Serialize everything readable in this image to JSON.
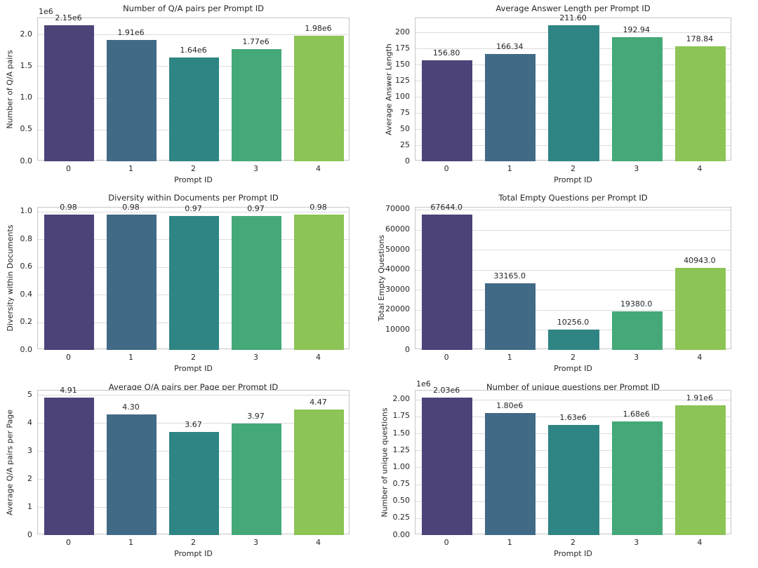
{
  "figure": {
    "background": "#ffffff",
    "text_color": "#262626",
    "grid_color": "#dcdcdc",
    "spine_color": "#c6c6c6",
    "palette": [
      "#4c4379",
      "#406a86",
      "#2f8583",
      "#45a878",
      "#8cc455"
    ]
  },
  "chart_data": [
    {
      "type": "bar",
      "title": "Number of Q/A pairs per Prompt ID",
      "xlabel": "Prompt ID",
      "ylabel": "Number of Q/A pairs",
      "categories": [
        "0",
        "1",
        "2",
        "3",
        "4"
      ],
      "values": [
        2150000,
        1910000,
        1640000,
        1770000,
        1980000
      ],
      "value_labels": [
        "2.15e6",
        "1.91e6",
        "1.64e6",
        "1.77e6",
        "1.98e6"
      ],
      "yticks": [
        {
          "v": 0,
          "label": "0.0"
        },
        {
          "v": 500000,
          "label": "0.5"
        },
        {
          "v": 1000000,
          "label": "1.0"
        },
        {
          "v": 1500000,
          "label": "1.5"
        },
        {
          "v": 2000000,
          "label": "2.0"
        }
      ],
      "ylim": [
        0,
        2257500
      ],
      "offset_text": "1e6",
      "grid": true,
      "legend": null,
      "row": 0,
      "col": 0
    },
    {
      "type": "bar",
      "title": "Average Answer Length per Prompt ID",
      "xlabel": "Prompt ID",
      "ylabel": "Average Answer Length",
      "categories": [
        "0",
        "1",
        "2",
        "3",
        "4"
      ],
      "values": [
        156.8,
        166.34,
        211.6,
        192.94,
        178.84
      ],
      "value_labels": [
        "156.80",
        "166.34",
        "211.60",
        "192.94",
        "178.84"
      ],
      "yticks": [
        {
          "v": 0,
          "label": "0"
        },
        {
          "v": 25,
          "label": "25"
        },
        {
          "v": 50,
          "label": "50"
        },
        {
          "v": 75,
          "label": "75"
        },
        {
          "v": 100,
          "label": "100"
        },
        {
          "v": 125,
          "label": "125"
        },
        {
          "v": 150,
          "label": "150"
        },
        {
          "v": 175,
          "label": "175"
        },
        {
          "v": 200,
          "label": "200"
        }
      ],
      "ylim": [
        0,
        222.18
      ],
      "offset_text": null,
      "grid": true,
      "legend": null,
      "row": 0,
      "col": 1
    },
    {
      "type": "bar",
      "title": "Diversity within Documents per Prompt ID",
      "xlabel": "Prompt ID",
      "ylabel": "Diversity within Documents",
      "categories": [
        "0",
        "1",
        "2",
        "3",
        "4"
      ],
      "values": [
        0.98,
        0.98,
        0.97,
        0.97,
        0.98
      ],
      "value_labels": [
        "0.98",
        "0.98",
        "0.97",
        "0.97",
        "0.98"
      ],
      "yticks": [
        {
          "v": 0,
          "label": "0.0"
        },
        {
          "v": 0.2,
          "label": "0.2"
        },
        {
          "v": 0.4,
          "label": "0.4"
        },
        {
          "v": 0.6,
          "label": "0.6"
        },
        {
          "v": 0.8,
          "label": "0.8"
        },
        {
          "v": 1.0,
          "label": "1.0"
        }
      ],
      "ylim": [
        0,
        1.029
      ],
      "offset_text": null,
      "grid": true,
      "legend": null,
      "row": 1,
      "col": 0
    },
    {
      "type": "bar",
      "title": "Total Empty Questions per Prompt ID",
      "xlabel": "Prompt ID",
      "ylabel": "Total Empty Questions",
      "categories": [
        "0",
        "1",
        "2",
        "3",
        "4"
      ],
      "values": [
        67644,
        33165,
        10256,
        19380,
        40943
      ],
      "value_labels": [
        "67644.0",
        "33165.0",
        "10256.0",
        "19380.0",
        "40943.0"
      ],
      "yticks": [
        {
          "v": 0,
          "label": "0"
        },
        {
          "v": 10000,
          "label": "10000"
        },
        {
          "v": 20000,
          "label": "20000"
        },
        {
          "v": 30000,
          "label": "30000"
        },
        {
          "v": 40000,
          "label": "40000"
        },
        {
          "v": 50000,
          "label": "50000"
        },
        {
          "v": 60000,
          "label": "60000"
        },
        {
          "v": 70000,
          "label": "70000"
        }
      ],
      "ylim": [
        0,
        71026
      ],
      "offset_text": null,
      "grid": true,
      "legend": null,
      "row": 1,
      "col": 1
    },
    {
      "type": "bar",
      "title": "Average Q/A pairs per Page per Prompt ID",
      "xlabel": "Prompt ID",
      "ylabel": "Average Q/A pairs per Page",
      "categories": [
        "0",
        "1",
        "2",
        "3",
        "4"
      ],
      "values": [
        4.91,
        4.3,
        3.67,
        3.97,
        4.47
      ],
      "value_labels": [
        "4.91",
        "4.30",
        "3.67",
        "3.97",
        "4.47"
      ],
      "yticks": [
        {
          "v": 0,
          "label": "0"
        },
        {
          "v": 1,
          "label": "1"
        },
        {
          "v": 2,
          "label": "2"
        },
        {
          "v": 3,
          "label": "3"
        },
        {
          "v": 4,
          "label": "4"
        },
        {
          "v": 5,
          "label": "5"
        }
      ],
      "ylim": [
        0,
        5.1555
      ],
      "offset_text": null,
      "grid": true,
      "legend": null,
      "row": 2,
      "col": 0
    },
    {
      "type": "bar",
      "title": "Number of unique questions per Prompt ID",
      "xlabel": "Prompt ID",
      "ylabel": "Number of unique questions",
      "categories": [
        "0",
        "1",
        "2",
        "3",
        "4"
      ],
      "values": [
        2030000,
        1800000,
        1630000,
        1680000,
        1910000
      ],
      "value_labels": [
        "2.03e6",
        "1.80e6",
        "1.63e6",
        "1.68e6",
        "1.91e6"
      ],
      "yticks": [
        {
          "v": 0,
          "label": "0.00"
        },
        {
          "v": 250000,
          "label": "0.25"
        },
        {
          "v": 500000,
          "label": "0.50"
        },
        {
          "v": 750000,
          "label": "0.75"
        },
        {
          "v": 1000000,
          "label": "1.00"
        },
        {
          "v": 1250000,
          "label": "1.25"
        },
        {
          "v": 1500000,
          "label": "1.50"
        },
        {
          "v": 1750000,
          "label": "1.75"
        },
        {
          "v": 2000000,
          "label": "2.00"
        }
      ],
      "ylim": [
        0,
        2131500
      ],
      "offset_text": "1e6",
      "grid": true,
      "legend": null,
      "row": 2,
      "col": 1
    }
  ]
}
